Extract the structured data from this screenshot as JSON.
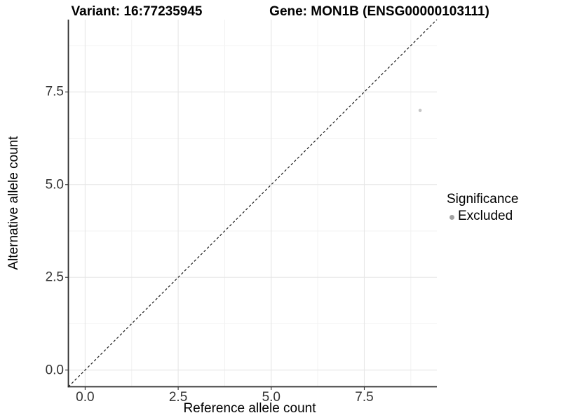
{
  "header": {
    "variant_title": "Variant: 16:77235945",
    "gene_title": "Gene: MON1B (ENSG00000103111)"
  },
  "axes": {
    "x_title": "Reference allele count",
    "y_title": "Alternative allele count"
  },
  "legend": {
    "title": "Significance",
    "items": [
      {
        "label": "Excluded",
        "swatch_color": "#a2a2a2"
      }
    ]
  },
  "chart_data": {
    "type": "scatter",
    "title_left": "Variant: 16:77235945",
    "title_right": "Gene: MON1B (ENSG00000103111)",
    "xlabel": "Reference allele count",
    "ylabel": "Alternative allele count",
    "xlim": [
      -0.45,
      9.45
    ],
    "ylim": [
      -0.45,
      9.45
    ],
    "xticks": [
      0,
      2.5,
      5,
      7.5
    ],
    "yticks": [
      0,
      2.5,
      5,
      7.5
    ],
    "xtick_labels": [
      "0.0",
      "2.5",
      "5.0",
      "7.5"
    ],
    "ytick_labels": [
      "0.0",
      "2.5",
      "5.0",
      "7.5"
    ],
    "minor_gridlines": [
      1.25,
      3.75,
      6.25,
      8.75
    ],
    "grid": "major+minor",
    "legend_position": "right",
    "reference_line": {
      "type": "identity y = x",
      "style": "dashed",
      "from": -0.45,
      "to": 9.45,
      "color": "#1a1a1a"
    },
    "series": [
      {
        "name": "Excluded",
        "color": "#c6c6c6",
        "points": [
          {
            "x": 9,
            "y": 7
          }
        ]
      }
    ]
  },
  "colors": {
    "background": "#ffffff",
    "major_grid": "#e6e6e6",
    "minor_grid": "#f2f2f2",
    "axis_line": "#2f2f2f",
    "tick_text": "#333333",
    "title_text": "#000000"
  }
}
